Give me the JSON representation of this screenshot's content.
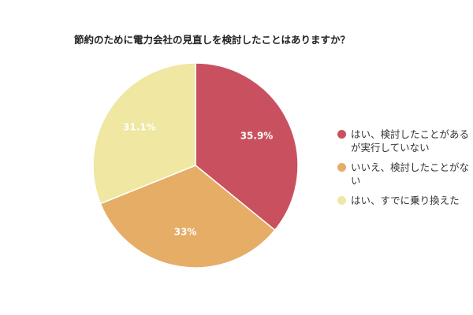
{
  "chart_data": {
    "type": "pie",
    "title": "節約のために電力会社の見直しを検討したことはありますか？",
    "categories": [
      "はい、検討したことがあるが実行していない",
      "いいえ、検討したことがない",
      "はい、すでに乗り換えた"
    ],
    "values": [
      35.9,
      33,
      31.1
    ],
    "value_labels": [
      "35.9%",
      "33%",
      "31.1%"
    ],
    "colors": [
      "#c9515f",
      "#e6ad67",
      "#efe7a2"
    ],
    "legend_position": "right"
  }
}
